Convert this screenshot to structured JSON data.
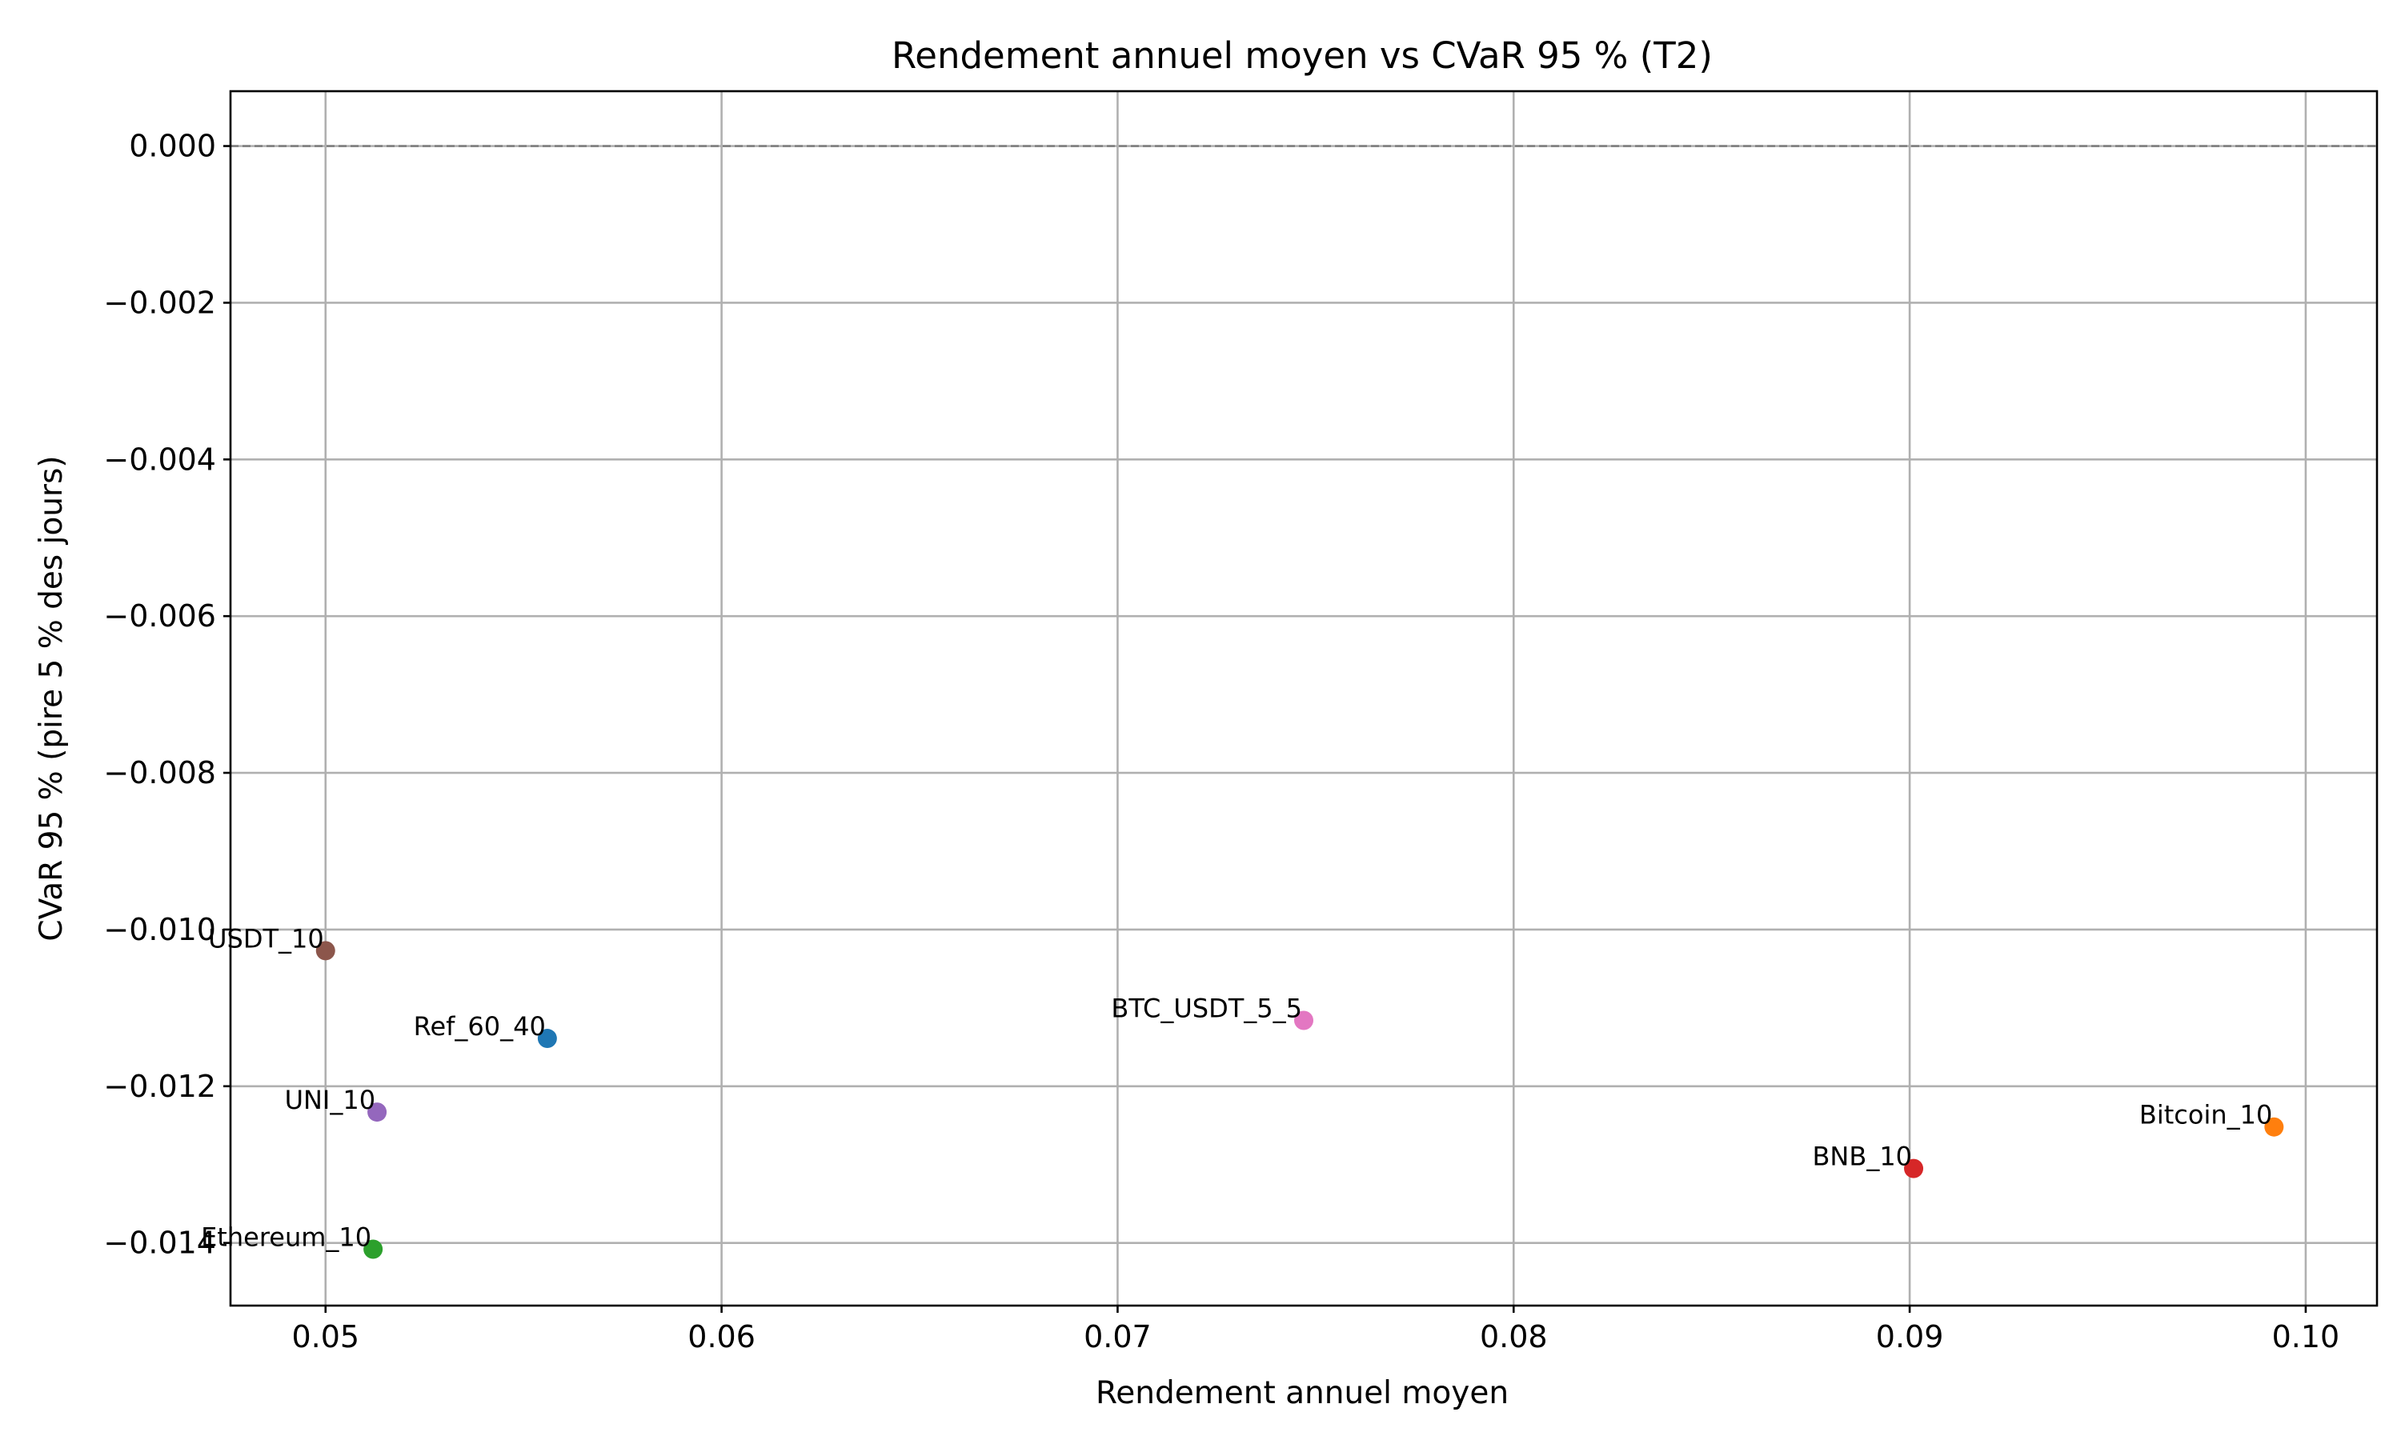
{
  "chart_data": {
    "type": "scatter",
    "title": "Rendement annuel moyen vs CVaR 95 % (T2)",
    "xlabel": "Rendement annuel moyen",
    "ylabel": "CVaR 95 % (pire 5 % des jours)",
    "xlim": [
      0.0476,
      0.1018
    ],
    "ylim": [
      -0.0148,
      0.0007
    ],
    "xticks": [
      0.05,
      0.06,
      0.07,
      0.08,
      0.09,
      0.1
    ],
    "xtick_labels": [
      "0.05",
      "0.06",
      "0.07",
      "0.08",
      "0.09",
      "0.10"
    ],
    "yticks": [
      0.0,
      -0.002,
      -0.004,
      -0.006,
      -0.008,
      -0.01,
      -0.012,
      -0.014
    ],
    "ytick_labels": [
      "0.000",
      "−0.002",
      "−0.004",
      "−0.006",
      "−0.008",
      "−0.010",
      "−0.012",
      "−0.014"
    ],
    "grid": true,
    "reference_line": {
      "y": 0,
      "style": "dashed",
      "color": "#808080"
    },
    "points": [
      {
        "label": "Ref_60_40",
        "x": 0.0556,
        "y": -0.01139,
        "color": "#1f77b4"
      },
      {
        "label": "Bitcoin_10",
        "x": 0.0992,
        "y": -0.01252,
        "color": "#ff7f0e"
      },
      {
        "label": "Ethereum_10",
        "x": 0.0512,
        "y": -0.01408,
        "color": "#2ca02c"
      },
      {
        "label": "BNB_10",
        "x": 0.0901,
        "y": -0.01305,
        "color": "#d62728"
      },
      {
        "label": "UNI_10",
        "x": 0.0513,
        "y": -0.01233,
        "color": "#9467bd"
      },
      {
        "label": "USDT_10",
        "x": 0.05,
        "y": -0.01027,
        "color": "#8c564b"
      },
      {
        "label": "BTC_USDT_5_5",
        "x": 0.0747,
        "y": -0.01116,
        "color": "#e377c2"
      }
    ]
  }
}
